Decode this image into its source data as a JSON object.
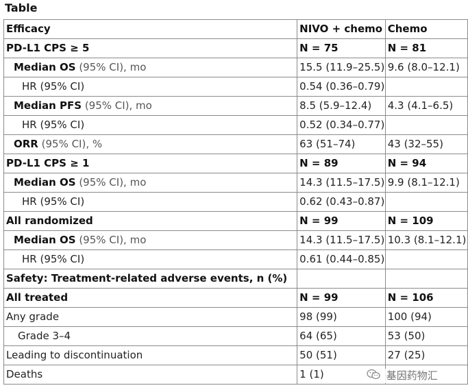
{
  "caption": "Table",
  "rows": [
    {
      "style": "header",
      "indent": 0,
      "label": "Efficacy",
      "qualifier": "",
      "nivo": "NIVO + chemo",
      "chemo": "Chemo"
    },
    {
      "style": "header",
      "indent": 0,
      "label": "PD-L1 CPS ≥ 5",
      "qualifier": "",
      "nivo": "N = 75",
      "chemo": "N = 81"
    },
    {
      "style": "metric",
      "indent": 1,
      "label": "Median OS",
      "qualifier": " (95% CI), mo",
      "nivo": "15.5 (11.9–25.5)",
      "chemo": "9.6 (8.0–12.1)"
    },
    {
      "style": "plain",
      "indent": 2,
      "label": "HR (95% CI)",
      "qualifier": "",
      "nivo": "0.54 (0.36–0.79)",
      "chemo": ""
    },
    {
      "style": "metric",
      "indent": 1,
      "label": "Median PFS",
      "qualifier": " (95% CI), mo",
      "nivo": "8.5 (5.9–12.4)",
      "chemo": "4.3 (4.1–6.5)"
    },
    {
      "style": "plain",
      "indent": 2,
      "label": "HR (95% CI)",
      "qualifier": "",
      "nivo": "0.52 (0.34–0.77)",
      "chemo": ""
    },
    {
      "style": "metric",
      "indent": 1,
      "label": "ORR",
      "qualifier": " (95% CI), %",
      "nivo": "63 (51–74)",
      "chemo": "43 (32–55)"
    },
    {
      "style": "header",
      "indent": 0,
      "label": "PD-L1 CPS ≥ 1",
      "qualifier": "",
      "nivo": "N = 89",
      "chemo": "N = 94"
    },
    {
      "style": "metric",
      "indent": 1,
      "label": "Median OS",
      "qualifier": " (95% CI), mo",
      "nivo": "14.3 (11.5–17.5)",
      "chemo": "9.9 (8.1–12.1)"
    },
    {
      "style": "plain",
      "indent": 2,
      "label": "HR (95% CI)",
      "qualifier": "",
      "nivo": "0.62 (0.43–0.87)",
      "chemo": ""
    },
    {
      "style": "header",
      "indent": 0,
      "label": "All randomized",
      "qualifier": "",
      "nivo": "N = 99",
      "chemo": "N = 109"
    },
    {
      "style": "metric",
      "indent": 1,
      "label": "Median OS",
      "qualifier": " (95% CI), mo",
      "nivo": "14.3 (11.5–17.5)",
      "chemo": "10.3 (8.1–12.1)"
    },
    {
      "style": "plain",
      "indent": 2,
      "label": "HR (95% CI)",
      "qualifier": "",
      "nivo": "0.61 (0.44–0.85)",
      "chemo": ""
    },
    {
      "style": "header",
      "indent": 0,
      "label": "Safety: Treatment-related adverse events, n (%)",
      "qualifier": "",
      "nivo": "",
      "chemo": ""
    },
    {
      "style": "header",
      "indent": 0,
      "label": "All treated",
      "qualifier": "",
      "nivo": "N = 99",
      "chemo": "N = 106"
    },
    {
      "style": "plain",
      "indent": 0,
      "label": "Any grade",
      "qualifier": "",
      "nivo": "98 (99)",
      "chemo": "100 (94)"
    },
    {
      "style": "plain",
      "indent": 1,
      "label": "Grade 3–4",
      "qualifier": "",
      "nivo": "64 (65)",
      "chemo": "53 (50)"
    },
    {
      "style": "plain",
      "indent": 0,
      "label": "Leading to discontinuation",
      "qualifier": "",
      "nivo": "50 (51)",
      "chemo": "27 (25)"
    },
    {
      "style": "plain",
      "indent": 0,
      "label": "Deaths",
      "qualifier": "",
      "nivo": "1 (1)",
      "chemo": "1 (1)"
    }
  ],
  "watermark": {
    "text": "基因药物汇",
    "icon": "wechat-icon"
  }
}
